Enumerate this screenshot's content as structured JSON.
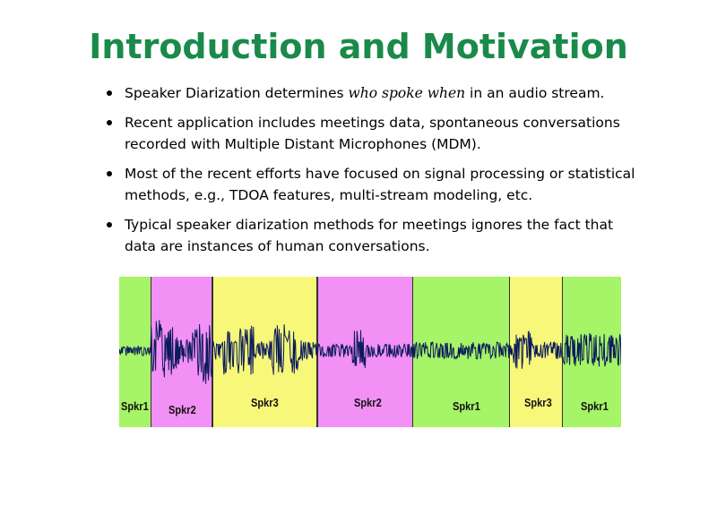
{
  "slide": {
    "title": "Introduction and Motivation",
    "bullets": [
      {
        "pre": "Speaker Diarization determines ",
        "em": "who spoke when",
        "post": " in an audio stream."
      },
      {
        "pre": "Recent application includes meetings data, spontaneous conversations recorded with Multiple Distant Microphones (MDM).",
        "em": "",
        "post": ""
      },
      {
        "pre": "Most of the recent efforts have focused on signal processing or statistical methods, e.g., TDOA features, multi-stream modeling, etc.",
        "em": "",
        "post": ""
      },
      {
        "pre": "Typical speaker diarization methods for meetings ignores the fact that data are instances of human conversations.",
        "em": "",
        "post": ""
      }
    ]
  },
  "diagram": {
    "colors": {
      "Spkr1": "#a6f467",
      "Spkr2": "#f290f5",
      "Spkr3": "#f7f77a",
      "wave": "#0a1a5a"
    },
    "segments": [
      {
        "label": "Spkr1",
        "speaker": "Spkr1"
      },
      {
        "label": "Spkr2",
        "speaker": "Spkr2"
      },
      {
        "label": "Spkr3",
        "speaker": "Spkr3"
      },
      {
        "label": "Spkr2",
        "speaker": "Spkr2"
      },
      {
        "label": "Spkr1",
        "speaker": "Spkr1"
      },
      {
        "label": "Spkr3",
        "speaker": "Spkr3"
      },
      {
        "label": "Spkr1",
        "speaker": "Spkr1"
      }
    ]
  }
}
